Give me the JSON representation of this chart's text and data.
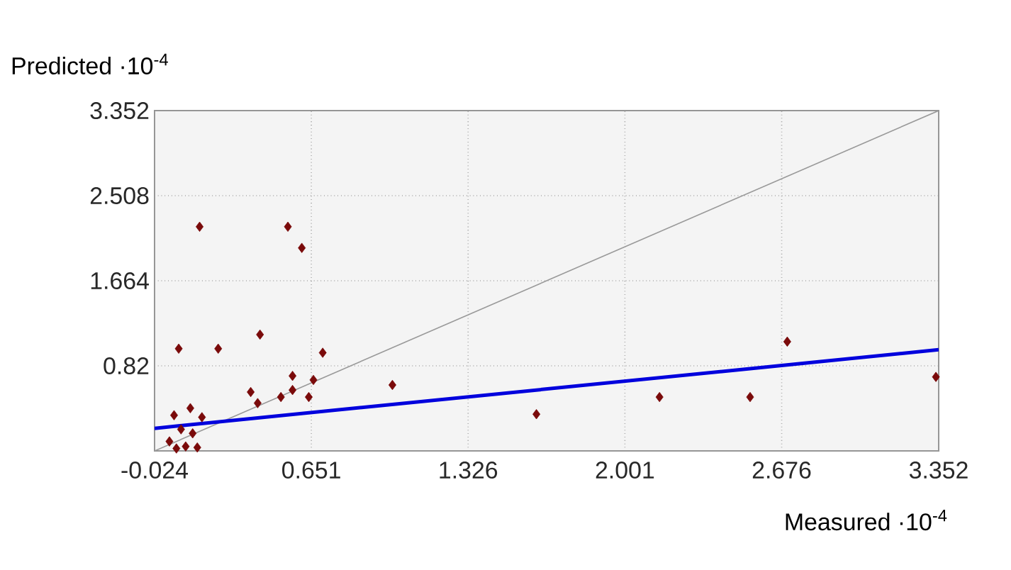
{
  "chart_data": {
    "type": "scatter",
    "xlabel": "Measured ·10$^{-4}$",
    "ylabel": "Predicted ·10$^{-4}$",
    "xlim": [
      -0.024,
      3.352
    ],
    "ylim": [
      -0.024,
      3.352
    ],
    "xticks": [
      -0.024,
      0.651,
      1.326,
      2.001,
      2.676,
      3.352
    ],
    "yticks": [
      0.82,
      1.664,
      2.508,
      3.352
    ],
    "grid": true,
    "series": [
      {
        "type": "line",
        "color": "#999999",
        "marker": "none",
        "x": [
          -0.024,
          3.352
        ],
        "values": [
          -0.024,
          3.352
        ]
      },
      {
        "type": "line",
        "color": "#0000dd",
        "marker": "none",
        "x": [
          -0.024,
          3.352
        ],
        "values": [
          0.2,
          0.98
        ]
      },
      {
        "color": "#7a0a0a",
        "marker": "diamond",
        "x": [
          0.17,
          0.55,
          0.61,
          0.08,
          0.25,
          0.43,
          0.7,
          0.57,
          0.66,
          0.39,
          0.42,
          0.52,
          0.57,
          0.64,
          1.0,
          0.06,
          0.13,
          0.18,
          0.09,
          0.04,
          0.11,
          0.16,
          0.07,
          0.14,
          1.62,
          2.15,
          2.54,
          2.7,
          3.34
        ],
        "values": [
          2.2,
          2.2,
          1.99,
          0.99,
          0.99,
          1.13,
          0.95,
          0.72,
          0.68,
          0.56,
          0.45,
          0.51,
          0.58,
          0.51,
          0.63,
          0.33,
          0.4,
          0.31,
          0.19,
          0.07,
          0.02,
          0.01,
          0.0,
          0.15,
          0.34,
          0.51,
          0.51,
          1.06,
          0.71
        ]
      }
    ]
  }
}
